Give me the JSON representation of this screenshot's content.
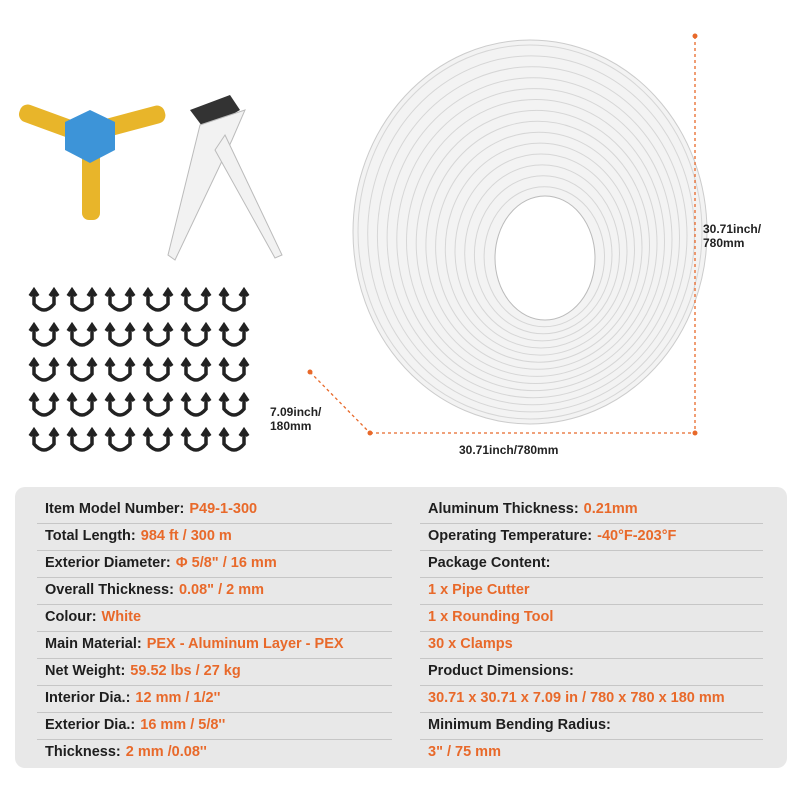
{
  "dimensions": {
    "height": "30.71inch/\n780mm",
    "height_line1": "30.71inch/",
    "height_line2": "780mm",
    "width": "30.71inch/780mm",
    "depth_line1": "7.09inch/",
    "depth_line2": "180mm",
    "line_color": "#e8692a"
  },
  "specs_left": [
    {
      "label": "Item Model Number:",
      "value": "P49-1-300"
    },
    {
      "label": "Total Length:",
      "value": "984 ft / 300 m"
    },
    {
      "label": "Exterior Diameter:",
      "value": "Φ 5/8\" / 16 mm"
    },
    {
      "label": "Overall Thickness:",
      "value": "0.08\" / 2 mm"
    },
    {
      "label": "Colour:",
      "value": "White"
    },
    {
      "label": "Main Material:",
      "value": "PEX - Aluminum Layer - PEX"
    },
    {
      "label": "Net Weight:",
      "value": "59.52 lbs / 27 kg"
    },
    {
      "label": "Interior Dia.:",
      "value": "12 mm / 1/2''"
    },
    {
      "label": "Exterior Dia.:",
      "value": "16 mm / 5/8''"
    },
    {
      "label": "Thickness:",
      "value": "2 mm /0.08''"
    }
  ],
  "specs_right": [
    {
      "label": "Aluminum Thickness:",
      "value": "0.21mm"
    },
    {
      "label": "Operating Temperature:",
      "value": "-40°F-203°F"
    },
    {
      "label": "Package Content:",
      "value": ""
    },
    {
      "label": "",
      "value": "1 x Pipe Cutter"
    },
    {
      "label": "",
      "value": "1 x Rounding Tool"
    },
    {
      "label": "",
      "value": "30 x Clamps"
    },
    {
      "label": "Product Dimensions:",
      "value": ""
    },
    {
      "label": "",
      "value": "30.71 x 30.71 x 7.09 in / 780 x 780 x 180 mm"
    },
    {
      "label": "Minimum Bending Radius:",
      "value": ""
    },
    {
      "label": "",
      "value": "3\" / 75 mm"
    }
  ],
  "colors": {
    "accent": "#e8692a",
    "panel": "#e8e8e8"
  }
}
